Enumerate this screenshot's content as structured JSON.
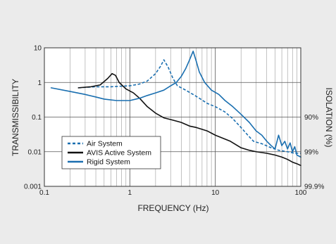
{
  "chart_data": {
    "type": "line",
    "xscale": "log",
    "yscale": "log",
    "xlim": [
      0.1,
      100
    ],
    "ylim": [
      0.001,
      10
    ],
    "xlabel": "FREQUENCY (Hz)",
    "ylabel": "TRANSMISSIBILITY",
    "y2label": "ISOLATION (%)",
    "grid": true,
    "legend_position": "bottom-left",
    "x_ticks": [
      {
        "value": 0.1,
        "label": "0.1"
      },
      {
        "value": 1,
        "label": "1"
      },
      {
        "value": 10,
        "label": "10"
      },
      {
        "value": 100,
        "label": "100"
      }
    ],
    "y_ticks": [
      {
        "value": 0.001,
        "label": "0.001"
      },
      {
        "value": 0.01,
        "label": "0.01"
      },
      {
        "value": 0.1,
        "label": "0.1"
      },
      {
        "value": 1,
        "label": "1"
      },
      {
        "value": 10,
        "label": "10"
      }
    ],
    "y2_ticks": [
      {
        "value": 0.1,
        "label": "90%"
      },
      {
        "value": 0.01,
        "label": "99%"
      },
      {
        "value": 0.001,
        "label": "99.9%"
      }
    ],
    "series": [
      {
        "name": "Air System",
        "color": "#1a6fb0",
        "style": "dashed",
        "points": [
          [
            0.25,
            0.7
          ],
          [
            0.4,
            0.75
          ],
          [
            0.6,
            0.75
          ],
          [
            0.8,
            0.78
          ],
          [
            1.0,
            0.8
          ],
          [
            1.3,
            0.9
          ],
          [
            1.6,
            1.1
          ],
          [
            2.0,
            1.8
          ],
          [
            2.3,
            3.0
          ],
          [
            2.5,
            4.5
          ],
          [
            2.8,
            2.8
          ],
          [
            3.2,
            1.3
          ],
          [
            3.6,
            0.8
          ],
          [
            4.5,
            0.6
          ],
          [
            5.5,
            0.45
          ],
          [
            6.5,
            0.35
          ],
          [
            8.0,
            0.25
          ],
          [
            10.0,
            0.2
          ],
          [
            13.0,
            0.14
          ],
          [
            16.0,
            0.09
          ],
          [
            20.0,
            0.05
          ],
          [
            24.0,
            0.03
          ],
          [
            28.0,
            0.02
          ],
          [
            35.0,
            0.017
          ],
          [
            45.0,
            0.013
          ],
          [
            55.0,
            0.011
          ],
          [
            70.0,
            0.01
          ],
          [
            85.0,
            0.009
          ],
          [
            100.0,
            0.009
          ]
        ]
      },
      {
        "name": "AVIS Active System",
        "color": "#111111",
        "style": "solid",
        "points": [
          [
            0.25,
            0.7
          ],
          [
            0.35,
            0.75
          ],
          [
            0.45,
            0.85
          ],
          [
            0.55,
            1.3
          ],
          [
            0.62,
            1.8
          ],
          [
            0.68,
            1.6
          ],
          [
            0.75,
            1.0
          ],
          [
            0.9,
            0.65
          ],
          [
            1.1,
            0.5
          ],
          [
            1.3,
            0.35
          ],
          [
            1.6,
            0.2
          ],
          [
            2.0,
            0.13
          ],
          [
            2.5,
            0.095
          ],
          [
            3.0,
            0.085
          ],
          [
            4.0,
            0.07
          ],
          [
            5.0,
            0.055
          ],
          [
            6.0,
            0.05
          ],
          [
            8.0,
            0.04
          ],
          [
            10.0,
            0.03
          ],
          [
            12.0,
            0.025
          ],
          [
            15.0,
            0.02
          ],
          [
            20.0,
            0.013
          ],
          [
            25.0,
            0.011
          ],
          [
            30.0,
            0.01
          ],
          [
            40.0,
            0.009
          ],
          [
            50.0,
            0.008
          ],
          [
            60.0,
            0.007
          ],
          [
            70.0,
            0.006
          ],
          [
            80.0,
            0.005
          ],
          [
            90.0,
            0.0045
          ],
          [
            100.0,
            0.004
          ]
        ]
      },
      {
        "name": "Rigid System",
        "color": "#1a6fb0",
        "style": "solid",
        "points": [
          [
            0.12,
            0.7
          ],
          [
            0.2,
            0.55
          ],
          [
            0.3,
            0.45
          ],
          [
            0.4,
            0.38
          ],
          [
            0.5,
            0.33
          ],
          [
            0.7,
            0.3
          ],
          [
            1.0,
            0.3
          ],
          [
            1.3,
            0.35
          ],
          [
            1.6,
            0.42
          ],
          [
            2.0,
            0.5
          ],
          [
            2.5,
            0.6
          ],
          [
            3.0,
            0.8
          ],
          [
            3.5,
            1.0
          ],
          [
            4.0,
            1.5
          ],
          [
            4.5,
            2.5
          ],
          [
            5.0,
            4.5
          ],
          [
            5.5,
            8.0
          ],
          [
            6.0,
            4.0
          ],
          [
            6.5,
            2.0
          ],
          [
            7.5,
            1.0
          ],
          [
            9.0,
            0.6
          ],
          [
            11.0,
            0.45
          ],
          [
            13.0,
            0.3
          ],
          [
            16.0,
            0.2
          ],
          [
            20.0,
            0.12
          ],
          [
            25.0,
            0.07
          ],
          [
            30.0,
            0.04
          ],
          [
            35.0,
            0.03
          ],
          [
            40.0,
            0.02
          ],
          [
            45.0,
            0.015
          ],
          [
            50.0,
            0.012
          ],
          [
            55.0,
            0.03
          ],
          [
            60.0,
            0.015
          ],
          [
            65.0,
            0.02
          ],
          [
            70.0,
            0.012
          ],
          [
            75.0,
            0.018
          ],
          [
            80.0,
            0.01
          ],
          [
            85.0,
            0.014
          ],
          [
            90.0,
            0.008
          ],
          [
            100.0,
            0.007
          ]
        ]
      }
    ]
  }
}
